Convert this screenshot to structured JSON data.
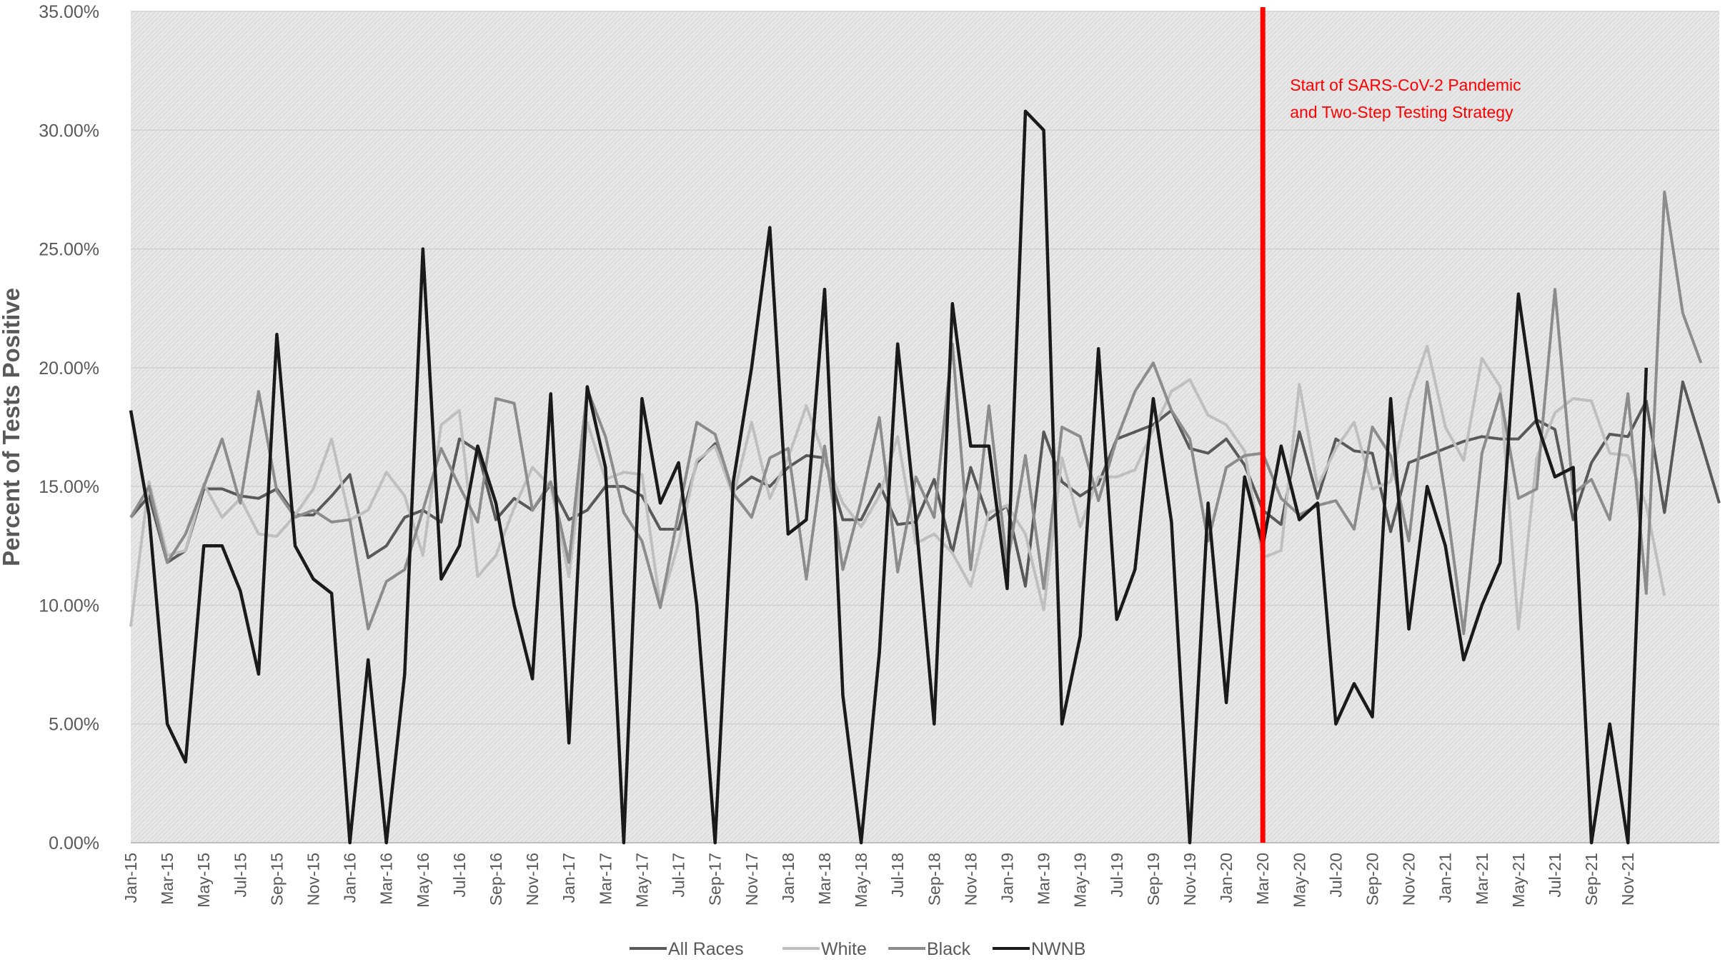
{
  "chart_data": {
    "type": "line",
    "title": "",
    "xlabel": "",
    "ylabel": "Percent of Tests Positive",
    "ylim": [
      0,
      35
    ],
    "ytick_values": [
      0,
      5,
      10,
      15,
      20,
      25,
      30,
      35
    ],
    "ytick_labels": [
      "0.00%",
      "5.00%",
      "10.00%",
      "15.00%",
      "20.00%",
      "25.00%",
      "30.00%",
      "35.00%"
    ],
    "grid": true,
    "legend_position": "bottom",
    "x_tick_labels": [
      "Jan-15",
      "Mar-15",
      "May-15",
      "Jul-15",
      "Sep-15",
      "Nov-15",
      "Jan-16",
      "Mar-16",
      "May-16",
      "Jul-16",
      "Sep-16",
      "Nov-16",
      "Jan-17",
      "Mar-17",
      "May-17",
      "Jul-17",
      "Sep-17",
      "Nov-17",
      "Jan-18",
      "Mar-18",
      "May-18",
      "Jul-18",
      "Sep-18",
      "Nov-18",
      "Jan-19",
      "Mar-19",
      "May-19",
      "Jul-19",
      "Sep-19",
      "Nov-19",
      "Jan-20",
      "Mar-20",
      "May-20",
      "Jul-20",
      "Sep-20",
      "Nov-20",
      "Jan-21",
      "Mar-21",
      "May-21",
      "Jul-21",
      "Sep-21",
      "Nov-21"
    ],
    "series": [
      {
        "name": "All Races",
        "color": "#595959",
        "values": [
          13.7,
          14.6,
          11.8,
          12.3,
          14.9,
          14.9,
          14.6,
          14.5,
          14.9,
          13.8,
          13.8,
          14.6,
          15.5,
          12.0,
          12.5,
          13.7,
          14.0,
          13.5,
          17.0,
          16.5,
          13.6,
          14.5,
          14.0,
          15.1,
          13.6,
          14.0,
          15.0,
          15.0,
          14.6,
          13.2,
          13.2,
          16.0,
          16.8,
          14.8,
          15.4,
          15.0,
          15.8,
          16.3,
          16.2,
          13.6,
          13.6,
          15.1,
          13.4,
          13.5,
          15.3,
          12.2,
          15.8,
          13.6,
          14.2,
          10.8,
          17.3,
          15.2,
          14.6,
          15.1,
          17.0,
          17.3,
          17.6,
          18.2,
          16.6,
          16.4,
          17.0,
          15.9,
          14.0,
          13.4,
          17.3,
          14.5,
          17.0,
          16.5,
          16.4,
          13.1,
          16.0,
          16.3,
          16.6,
          16.9,
          17.1,
          17.0,
          17.0,
          17.8,
          17.4,
          13.6,
          16.0,
          17.2,
          17.1,
          18.6,
          13.9,
          19.4,
          16.9,
          14.3
        ]
      },
      {
        "name": "White",
        "color": "#bfbfbf",
        "values": [
          9.1,
          15.2,
          12.1,
          12.3,
          15.1,
          13.7,
          14.5,
          13.0,
          12.9,
          13.8,
          14.9,
          17.0,
          13.6,
          14.0,
          15.6,
          14.6,
          12.1,
          17.6,
          18.2,
          11.2,
          12.1,
          14.1,
          15.8,
          15.0,
          11.2,
          17.7,
          15.3,
          15.6,
          15.5,
          10.0,
          12.6,
          16.1,
          16.7,
          14.6,
          17.7,
          14.5,
          16.2,
          18.4,
          16.2,
          14.3,
          13.3,
          14.6,
          17.1,
          12.6,
          13.0,
          12.2,
          10.8,
          13.9,
          14.2,
          13.0,
          9.8,
          16.2,
          13.3,
          15.4,
          15.4,
          15.7,
          17.4,
          19.0,
          19.5,
          18.0,
          17.6,
          16.5,
          12.0,
          12.3,
          19.3,
          15.0,
          16.6,
          17.7,
          14.9,
          15.2,
          18.7,
          20.9,
          17.5,
          16.1,
          20.4,
          19.2,
          9.0,
          16.2,
          18.1,
          18.7,
          18.6,
          16.4,
          16.3,
          14.2,
          10.4
        ]
      },
      {
        "name": "Black",
        "color": "#8c8c8c",
        "values": [
          13.7,
          15.0,
          11.8,
          13.0,
          15.0,
          17.0,
          14.3,
          19.0,
          14.8,
          13.7,
          14.0,
          13.5,
          13.6,
          9.0,
          11.0,
          11.5,
          14.0,
          16.6,
          15.0,
          13.5,
          18.7,
          18.5,
          14.0,
          15.2,
          11.8,
          19.1,
          17.1,
          13.9,
          12.7,
          9.9,
          13.9,
          17.7,
          17.2,
          14.7,
          13.7,
          16.2,
          16.6,
          11.1,
          16.7,
          11.5,
          14.4,
          17.9,
          11.4,
          15.4,
          13.7,
          21.0,
          11.5,
          18.4,
          11.7,
          16.3,
          10.7,
          17.5,
          17.1,
          14.4,
          17.0,
          19.0,
          20.2,
          18.2,
          17.0,
          12.7,
          15.8,
          16.3,
          16.4,
          14.5,
          13.8,
          14.2,
          14.4,
          13.2,
          17.5,
          16.3,
          12.7,
          19.4,
          14.6,
          8.8,
          16.4,
          18.9,
          14.5,
          14.9,
          23.3,
          14.7,
          15.3,
          13.6,
          18.9,
          10.5,
          27.4,
          22.3,
          20.2
        ]
      },
      {
        "name": "NWNB",
        "color": "#1a1a1a",
        "values": [
          18.2,
          13.8,
          5.0,
          3.4,
          12.5,
          12.5,
          10.6,
          7.1,
          21.4,
          12.5,
          11.1,
          10.5,
          0.0,
          7.7,
          0.0,
          7.1,
          25.0,
          11.1,
          12.5,
          16.7,
          14.3,
          10.0,
          6.9,
          18.9,
          4.2,
          19.2,
          15.8,
          0.0,
          18.7,
          14.3,
          16.0,
          10.0,
          0.0,
          15.2,
          20.0,
          25.9,
          13.0,
          13.6,
          23.3,
          6.2,
          0.0,
          8.0,
          21.0,
          13.6,
          5.0,
          22.7,
          16.7,
          16.7,
          10.7,
          30.8,
          30.0,
          5.0,
          8.7,
          20.8,
          9.4,
          11.5,
          18.7,
          13.5,
          0.0,
          14.3,
          5.9,
          15.4,
          12.5,
          16.7,
          13.6,
          14.3,
          5.0,
          6.7,
          5.3,
          18.7,
          9.0,
          15.0,
          12.5,
          7.7,
          10.0,
          11.8,
          23.1,
          17.7,
          15.4,
          15.8,
          0.0,
          5.0,
          0.0,
          20.0
        ]
      }
    ],
    "annotations": [
      {
        "text_line1": "Start of SARS-CoV-2 Pandemic",
        "text_line2": "and Two-Step Testing Strategy",
        "x_category": "Mar-20",
        "color": "#ff0000"
      }
    ]
  }
}
